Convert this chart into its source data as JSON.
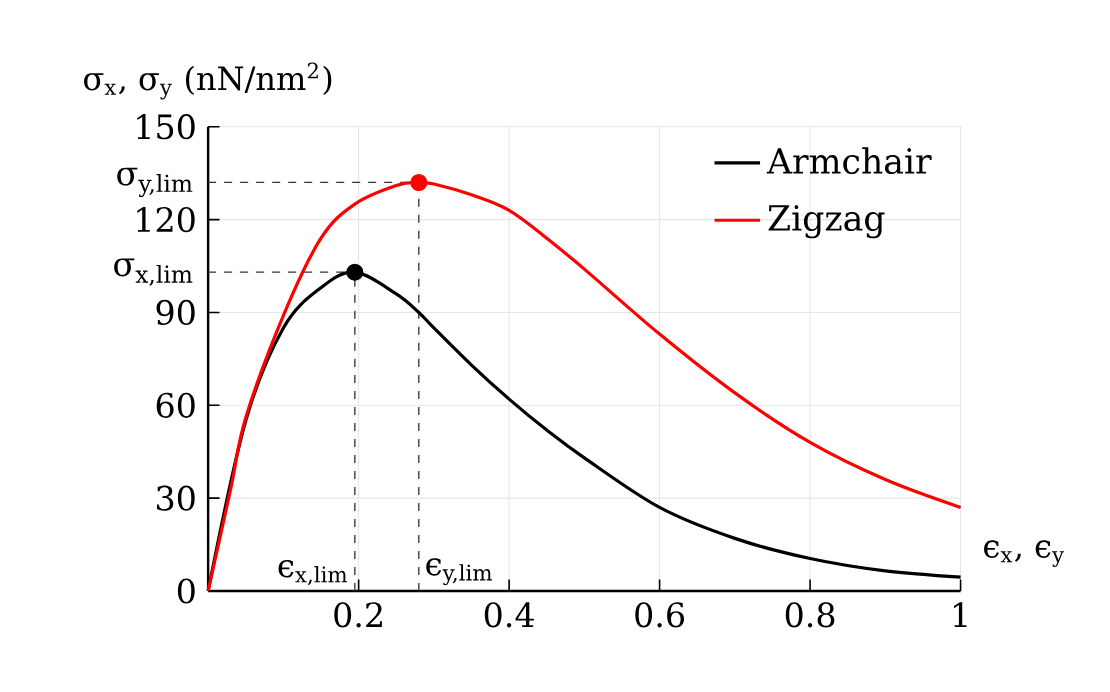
{
  "chart_data": {
    "type": "line",
    "xlabel": "ϵ$_{x}$, ϵ$_{y}$",
    "ylabel": "σ$_{x}$, σ$_{y}$ (nN/nm$^{2}$)",
    "x": [
      0,
      0.03,
      0.05,
      0.1,
      0.15,
      0.195,
      0.25,
      0.28,
      0.3,
      0.35,
      0.4,
      0.45,
      0.5,
      0.6,
      0.7,
      0.8,
      0.9,
      1
    ],
    "series": [
      {
        "name": "Armchair",
        "color": "#000000",
        "values": [
          0,
          null,
          55,
          85,
          98,
          103,
          96,
          90,
          85,
          73,
          62,
          52,
          43,
          27,
          17,
          10.5,
          6.5,
          4.5
        ]
      },
      {
        "name": "Zigzag",
        "color": "#ff0000",
        "values": [
          0,
          33,
          56,
          89,
          114,
          125,
          131,
          132,
          131.5,
          128,
          123,
          114,
          104,
          83,
          64,
          48,
          36,
          27
        ]
      },
      {
        "type": "scatter",
        "marker": "circle",
        "x": [
          0.195,
          0.28
        ],
        "values": [
          103,
          132
        ],
        "colors": [
          "#000000",
          "#ff0000"
        ]
      }
    ],
    "ref_lines": [
      {
        "axis": "x",
        "value": 0.195,
        "label": "ϵ$_{x,lim}$",
        "color": "#333333",
        "line_style": "dashed"
      },
      {
        "axis": "x",
        "value": 0.28,
        "label": "ϵ$_{y,lim}$",
        "color": "#333333",
        "line_style": "dashed"
      },
      {
        "axis": "y",
        "value": 103,
        "label": "σ$_{x,lim}$",
        "color": "#333333",
        "line_style": "dashed"
      },
      {
        "axis": "y",
        "value": 132,
        "label": "σ$_{y,lim}$",
        "color": "#333333",
        "line_style": "dashed"
      }
    ],
    "xlim": [
      0,
      1
    ],
    "ylim": [
      0,
      150
    ],
    "xticks": [
      0.2,
      0.4,
      0.6,
      0.8,
      1
    ],
    "yticks": [
      0,
      30,
      60,
      90,
      120,
      150
    ],
    "grid": true,
    "legend": "top right",
    "line_style": "solid"
  }
}
